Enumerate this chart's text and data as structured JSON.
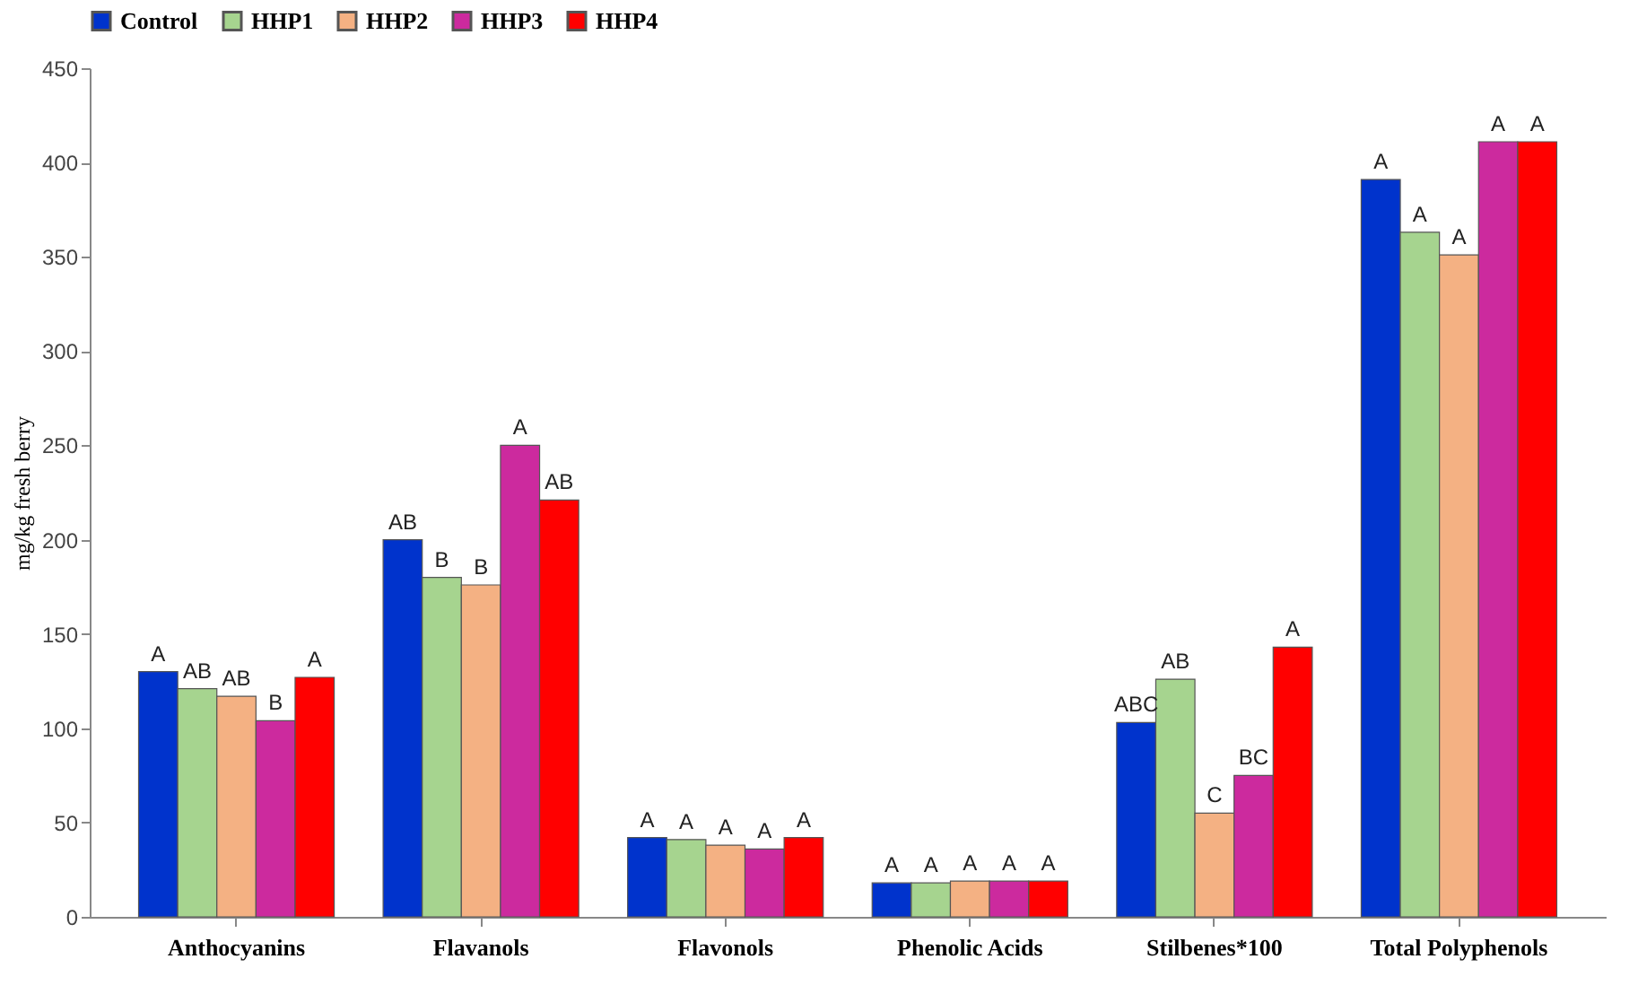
{
  "chart_data": {
    "type": "bar",
    "ylabel": "mg/kg fresh berry",
    "categories": [
      "Anthocyanins",
      "Flavanols",
      "Flavonols",
      "Phenolic Acids",
      "Stilbenes*100",
      "Total Polyphenols"
    ],
    "series": [
      {
        "name": "Control",
        "color": "#0033cc",
        "values": [
          130,
          200,
          42,
          18,
          103,
          391
        ],
        "value_labels": [
          "A",
          "AB",
          "A",
          "A",
          "ABC",
          "A"
        ]
      },
      {
        "name": "HHP1",
        "color": "#a6d48f",
        "values": [
          121,
          180,
          41,
          18,
          126,
          363
        ],
        "value_labels": [
          "AB",
          "B",
          "A",
          "A",
          "AB",
          "A"
        ]
      },
      {
        "name": "HHP2",
        "color": "#f4b183",
        "values": [
          117,
          176,
          38,
          19,
          55,
          351
        ],
        "value_labels": [
          "AB",
          "B",
          "A",
          "A",
          "C",
          "A"
        ]
      },
      {
        "name": "HHP3",
        "color": "#cc2a9e",
        "values": [
          104,
          250,
          36,
          19,
          75,
          411
        ],
        "value_labels": [
          "B",
          "A",
          "A",
          "A",
          "BC",
          "A"
        ]
      },
      {
        "name": "HHP4",
        "color": "#ff0000",
        "values": [
          127,
          221,
          42,
          19,
          143,
          411
        ],
        "value_labels": [
          "A",
          "AB",
          "A",
          "A",
          "A",
          "A"
        ]
      }
    ],
    "ylim": [
      0,
      450
    ],
    "yticks": [
      0,
      50,
      100,
      150,
      200,
      250,
      300,
      350,
      400,
      450
    ],
    "grid": false,
    "legend": "top"
  }
}
